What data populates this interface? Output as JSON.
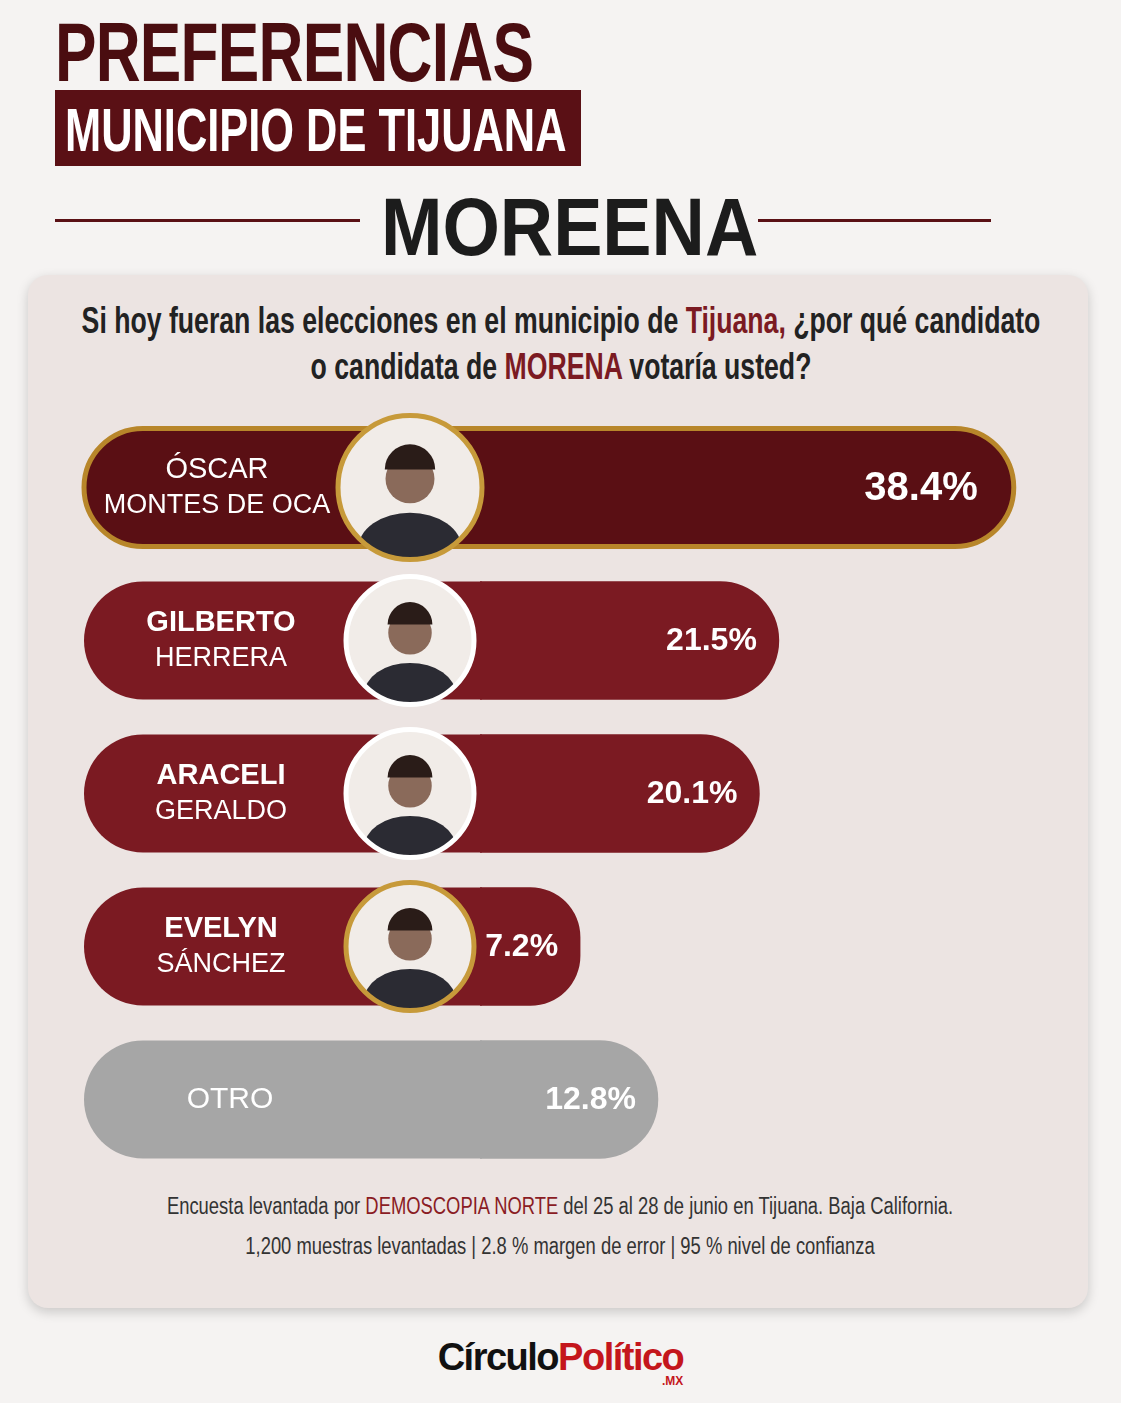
{
  "header": {
    "title": "PREFERENCIAS",
    "subtitle": "MUNICIPIO DE TIJUANA",
    "party": "MOREENA"
  },
  "question_highlights": [
    "Tijuana,",
    "MORENA"
  ],
  "chart_data": {
    "type": "bar",
    "orientation": "horizontal",
    "title": "Si hoy fueran las elecciones en el municipio de Tijuana, ¿por qué candidato o candidata de MORENA votaría usted?",
    "categories": [
      "ÓSCAR MONTES DE OCA",
      "GILBERTO HERRERA",
      "ARACELI GERALDO",
      "EVELYN SÁNCHEZ",
      "OTRO"
    ],
    "values": [
      38.4,
      21.5,
      20.1,
      7.2,
      12.8
    ],
    "value_labels": [
      "38.4%",
      "21.5%",
      "20.1%",
      "7.2%",
      "12.8%"
    ],
    "colors": [
      "#5a0f14",
      "#7b1a22",
      "#7b1a22",
      "#7b1a22",
      "#a6a6a6"
    ],
    "xlim": [
      0,
      40
    ],
    "grid": false,
    "data_labels": true,
    "tick_labels": false
  },
  "footnote": {
    "source_before": "Encuesta levantada por ",
    "source_highlight": "DEMOSCOPIA NORTE",
    "source_after": " del 25 al 28 de junio en Tijuana. Baja California.",
    "details": "1,200 muestras levantadas | 2.8 % margen de error | 95 % nivel de confianza"
  },
  "logo": {
    "part1": "Círculo",
    "part2": "Político",
    "suffix": ".MX"
  }
}
